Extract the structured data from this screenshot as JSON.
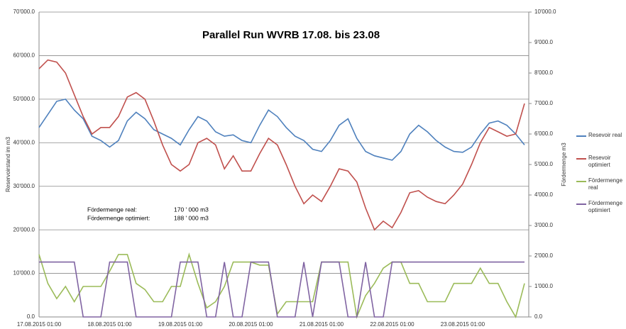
{
  "chart_data": {
    "type": "line",
    "title": "Parallel Run WVRB 17.08. bis 23.08",
    "y_label": "Reservoirstand im m3",
    "y2_label": "Fördermenge m3",
    "annotations": [
      [
        "Fördermenge  real:",
        "170 ' 000 m3"
      ],
      [
        "Fördermenge  optimiert:",
        "188 ' 000 m3"
      ]
    ],
    "categories": [
      "17.08.2015 01:00",
      null,
      null,
      null,
      null,
      null,
      null,
      null,
      "18.08.2015 01:00",
      null,
      null,
      null,
      null,
      null,
      null,
      null,
      "19.08.2015 01:00",
      null,
      null,
      null,
      null,
      null,
      null,
      null,
      "20.08.2015 01:00",
      null,
      null,
      null,
      null,
      null,
      null,
      null,
      "21.08.2015 01:00",
      null,
      null,
      null,
      null,
      null,
      null,
      null,
      "22.08.2015 01:00",
      null,
      null,
      null,
      null,
      null,
      null,
      null,
      "23.08.2015 01:00",
      null,
      null,
      null,
      null,
      null,
      null,
      null
    ],
    "series": [
      {
        "name": "Resevoir real",
        "color": "#4f81bd",
        "axis": "y",
        "values": [
          43500,
          46500,
          49500,
          50000,
          47500,
          45500,
          41500,
          40500,
          39000,
          40500,
          45000,
          47000,
          45500,
          43000,
          42000,
          41000,
          39500,
          43000,
          46000,
          45000,
          42500,
          41500,
          41800,
          40500,
          40000,
          44000,
          47500,
          46000,
          43500,
          41500,
          40500,
          38500,
          38000,
          40500,
          44000,
          45500,
          41000,
          38000,
          37000,
          36500,
          36000,
          38000,
          42000,
          44000,
          42500,
          40500,
          39000,
          38000,
          37800,
          39000,
          42000,
          44500,
          45000,
          44000,
          42000,
          39500
        ]
      },
      {
        "name": "Resevoir optimiert",
        "color": "#c0504d",
        "axis": "y",
        "values": [
          57000,
          59000,
          58500,
          56000,
          51000,
          46000,
          42000,
          43500,
          43500,
          46000,
          50500,
          51500,
          50000,
          45000,
          39500,
          35000,
          33500,
          35000,
          40000,
          41000,
          39500,
          34000,
          37000,
          33500,
          33500,
          37500,
          41000,
          39500,
          35000,
          30000,
          26000,
          28000,
          26500,
          30000,
          34000,
          33500,
          31000,
          25000,
          20000,
          22000,
          20500,
          24000,
          28500,
          29000,
          27500,
          26500,
          26000,
          28000,
          30500,
          35000,
          40000,
          43500,
          42500,
          41500,
          42000,
          49000
        ]
      },
      {
        "name": "Fördermenge real",
        "color": "#9bbb59",
        "axis": "y2",
        "values": [
          2050,
          1100,
          600,
          1000,
          500,
          1000,
          1000,
          1000,
          1500,
          2050,
          2050,
          1100,
          900,
          500,
          500,
          1000,
          1000,
          2050,
          1100,
          300,
          500,
          1000,
          1800,
          1800,
          1800,
          1700,
          1700,
          100,
          500,
          500,
          500,
          500,
          1800,
          1800,
          1800,
          1800,
          0,
          700,
          1100,
          1600,
          1800,
          1800,
          1100,
          1100,
          500,
          500,
          500,
          1100,
          1100,
          1100,
          1600,
          1100,
          1100,
          500,
          0,
          1100
        ]
      },
      {
        "name": "Fördermenge optimiert",
        "color": "#8064a2",
        "axis": "y2",
        "values": [
          1800,
          1800,
          1800,
          1800,
          1800,
          0,
          0,
          0,
          1800,
          1800,
          1800,
          0,
          0,
          0,
          0,
          0,
          1800,
          1800,
          1800,
          0,
          0,
          1800,
          0,
          0,
          1800,
          1800,
          1800,
          0,
          0,
          0,
          1800,
          0,
          1800,
          1800,
          1800,
          0,
          0,
          1800,
          0,
          0,
          1800,
          1800,
          1800,
          1800,
          1800,
          1800,
          1800,
          1800,
          1800,
          1800,
          1800,
          1800,
          1800,
          1800,
          1800,
          1800
        ]
      }
    ],
    "ylim": [
      0,
      70000
    ],
    "yticks": [
      {
        "value": 0,
        "label": "0.0"
      },
      {
        "value": 10000,
        "label": "10'000.0"
      },
      {
        "value": 20000,
        "label": "20'000.0"
      },
      {
        "value": 30000,
        "label": "30'000.0"
      },
      {
        "value": 40000,
        "label": "40'000.0"
      },
      {
        "value": 50000,
        "label": "50'000.0"
      },
      {
        "value": 60000,
        "label": "60'000.0"
      },
      {
        "value": 70000,
        "label": "70'000.0"
      }
    ],
    "y2lim": [
      0,
      10000
    ],
    "y2ticks": [
      {
        "value": 0,
        "label": "0.0"
      },
      {
        "value": 1000,
        "label": "1'000.0"
      },
      {
        "value": 2000,
        "label": "2'000.0"
      },
      {
        "value": 3000,
        "label": "3'000.0"
      },
      {
        "value": 4000,
        "label": "4'000.0"
      },
      {
        "value": 5000,
        "label": "5'000.0"
      },
      {
        "value": 6000,
        "label": "6'000.0"
      },
      {
        "value": 7000,
        "label": "7'000.0"
      },
      {
        "value": 8000,
        "label": "8'000.0"
      },
      {
        "value": 9000,
        "label": "9'000.0"
      },
      {
        "value": 10000,
        "label": "10'000.0"
      }
    ],
    "grid": true,
    "legend": "right"
  }
}
